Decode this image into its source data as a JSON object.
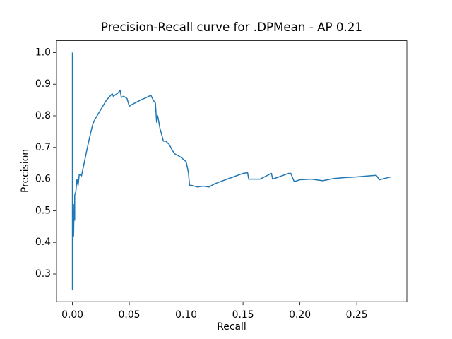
{
  "chart_data": {
    "type": "line",
    "title": "Precision-Recall curve for .DPMean - AP 0.21",
    "x_label": "Recall",
    "y_label": "Precision",
    "x": [
      0,
      0,
      0,
      0.0005,
      0.001,
      0.001,
      0.0015,
      0.002,
      0.002,
      0.003,
      0.004,
      0.005,
      0.006,
      0.008,
      0.01,
      0.012,
      0.015,
      0.018,
      0.02,
      0.025,
      0.03,
      0.035,
      0.036,
      0.04,
      0.042,
      0.043,
      0.045,
      0.048,
      0.05,
      0.052,
      0.06,
      0.065,
      0.069,
      0.071,
      0.073,
      0.074,
      0.075,
      0.077,
      0.08,
      0.082,
      0.085,
      0.088,
      0.09,
      0.095,
      0.1,
      0.102,
      0.103,
      0.105,
      0.11,
      0.115,
      0.12,
      0.125,
      0.13,
      0.14,
      0.15,
      0.154,
      0.155,
      0.16,
      0.165,
      0.175,
      0.176,
      0.18,
      0.19,
      0.192,
      0.195,
      0.2,
      0.21,
      0.22,
      0.23,
      0.24,
      0.25,
      0.26,
      0.267,
      0.27,
      0.28
    ],
    "series": [
      {
        "name": "Precision",
        "color": "#1f77b4",
        "values": [
          1.0,
          0.25,
          0.38,
          0.45,
          0.5,
          0.42,
          0.52,
          0.47,
          0.55,
          0.56,
          0.6,
          0.58,
          0.615,
          0.61,
          0.645,
          0.68,
          0.73,
          0.775,
          0.79,
          0.82,
          0.85,
          0.87,
          0.862,
          0.872,
          0.88,
          0.858,
          0.862,
          0.855,
          0.83,
          0.835,
          0.85,
          0.858,
          0.865,
          0.85,
          0.84,
          0.78,
          0.8,
          0.76,
          0.72,
          0.72,
          0.71,
          0.69,
          0.68,
          0.67,
          0.655,
          0.62,
          0.58,
          0.58,
          0.575,
          0.578,
          0.575,
          0.585,
          0.592,
          0.605,
          0.618,
          0.62,
          0.6,
          0.6,
          0.6,
          0.618,
          0.6,
          0.605,
          0.618,
          0.618,
          0.592,
          0.598,
          0.6,
          0.595,
          0.602,
          0.605,
          0.607,
          0.61,
          0.612,
          0.598,
          0.607
        ]
      }
    ],
    "xlim": [
      -0.014,
      0.294
    ],
    "ylim": [
      0.2125,
      1.0375
    ],
    "xticks": [
      {
        "value": 0,
        "label": "0.00"
      },
      {
        "value": 0.05,
        "label": "0.05"
      },
      {
        "value": 0.1,
        "label": "0.10"
      },
      {
        "value": 0.15,
        "label": "0.15"
      },
      {
        "value": 0.2,
        "label": "0.20"
      },
      {
        "value": 0.25,
        "label": "0.25"
      }
    ],
    "yticks": [
      0.3,
      0.4,
      0.5,
      0.6,
      0.7,
      0.8,
      0.9,
      {
        "value": 1.0,
        "label": "1.0"
      }
    ],
    "grid": false
  }
}
